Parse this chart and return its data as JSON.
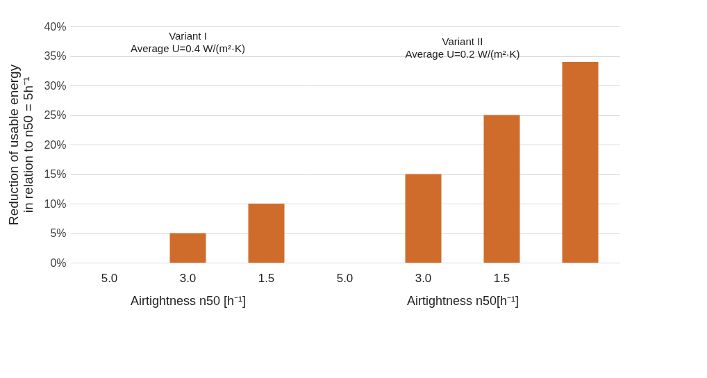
{
  "chart_data": [
    {
      "type": "bar",
      "title": "Variant I",
      "subtitle": "Average U=0.4 W/(m²·K)",
      "xlabel": "Airtightness n50 [h⁻¹]",
      "ylabel": "Reduction of usable energy\nin relation to n50 = 5h⁻¹",
      "categories": [
        "5.0",
        "3.0",
        "1.5"
      ],
      "series": [
        {
          "color": "#d06c2b",
          "values": [
            0,
            5,
            10
          ]
        }
      ],
      "ylim": [
        0,
        40
      ],
      "yticks": [
        {
          "value": 0,
          "label": "0%"
        },
        {
          "value": 5,
          "label": "5%"
        },
        {
          "value": 10,
          "label": "10%"
        },
        {
          "value": 15,
          "label": "15%"
        },
        {
          "value": 20,
          "label": "20%"
        },
        {
          "value": 25,
          "label": "25%"
        },
        {
          "value": 30,
          "label": "30%"
        },
        {
          "value": 35,
          "label": "35%"
        },
        {
          "value": 40,
          "label": "40%"
        }
      ],
      "grid": "y"
    },
    {
      "type": "bar",
      "title": "Variant II",
      "subtitle": "Average U=0.2 W/(m²·K)",
      "xlabel": "Airtightness n50[h⁻¹]",
      "categories": [
        "5.0",
        "3.0",
        "1.5",
        null
      ],
      "series": [
        {
          "color": "#d06c2b",
          "values": [
            0,
            15,
            25,
            34
          ]
        }
      ],
      "ylim": [
        0,
        40
      ],
      "yticks": [
        0,
        5,
        10,
        15,
        20,
        25,
        30,
        35,
        40
      ],
      "grid": "y",
      "tick_labels": "x"
    }
  ]
}
